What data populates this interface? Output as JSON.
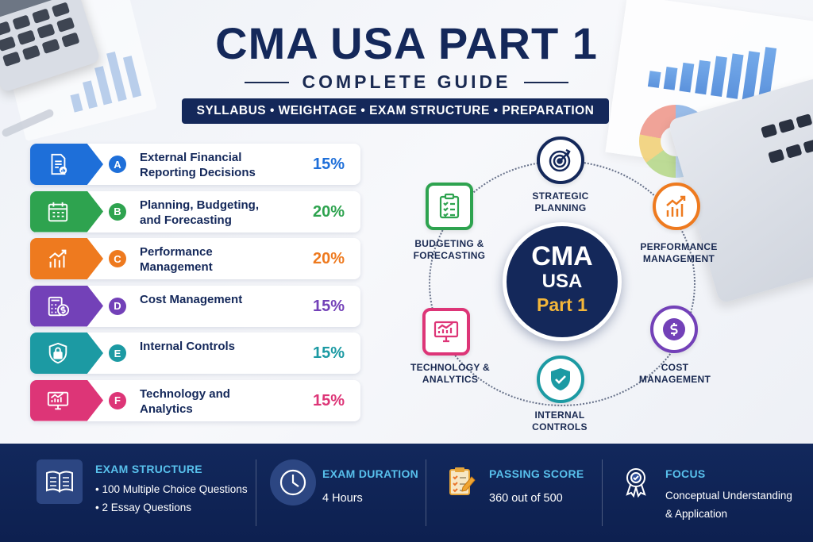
{
  "header": {
    "title": "CMA USA PART 1",
    "subtitle": "COMPLETE GUIDE",
    "topics": "SYLLABUS • WEIGHTAGE • EXAM STRUCTURE • PREPARATION"
  },
  "sections": [
    {
      "letter": "A",
      "name": "External Financial Reporting Decisions",
      "weight": "15%",
      "color": "#1e6fd9",
      "icon": "report-document-icon"
    },
    {
      "letter": "B",
      "name": "Planning, Budgeting, and Forecasting",
      "weight": "20%",
      "color": "#2ea34f",
      "icon": "calendar-icon"
    },
    {
      "letter": "C",
      "name": "Performance Management",
      "weight": "20%",
      "color": "#ee7a1f",
      "icon": "growth-chart-icon"
    },
    {
      "letter": "D",
      "name": "Cost Management",
      "weight": "15%",
      "color": "#7341b8",
      "icon": "calculator-dollar-icon"
    },
    {
      "letter": "E",
      "name": "Internal Controls",
      "weight": "15%",
      "color": "#1c9aa3",
      "icon": "shield-lock-icon"
    },
    {
      "letter": "F",
      "name": "Technology and Analytics",
      "weight": "15%",
      "color": "#dd3577",
      "icon": "monitor-chart-icon"
    }
  ],
  "diagram": {
    "center": {
      "line1": "CMA",
      "line2": "USA",
      "line3": "Part 1"
    },
    "nodes": [
      {
        "label_1": "STRATEGIC",
        "label_2": "PLANNING",
        "color": "#14285a",
        "icon": "target-icon"
      },
      {
        "label_1": "PERFORMANCE",
        "label_2": "MANAGEMENT",
        "color": "#ee7a1f",
        "icon": "growth-chart-icon"
      },
      {
        "label_1": "COST",
        "label_2": "MANAGEMENT",
        "color": "#7341b8",
        "icon": "dollar-coin-icon"
      },
      {
        "label_1": "INTERNAL",
        "label_2": "CONTROLS",
        "color": "#1c9aa3",
        "icon": "shield-check-icon"
      },
      {
        "label_1": "TECHNOLOGY &",
        "label_2": "ANALYTICS",
        "color": "#dd3577",
        "icon": "monitor-chart-icon"
      },
      {
        "label_1": "BUDGETING &",
        "label_2": "FORECASTING",
        "color": "#2ea34f",
        "icon": "checklist-clipboard-icon"
      }
    ]
  },
  "footer": {
    "structure": {
      "heading": "EXAM STRUCTURE",
      "line1": "• 100 Multiple Choice Questions",
      "line2": "• 2 Essay Questions",
      "icon": "open-book-icon"
    },
    "duration": {
      "heading": "EXAM DURATION",
      "value": "4 Hours",
      "icon": "clock-icon"
    },
    "passing": {
      "heading": "PASSING SCORE",
      "value": "360 out of 500",
      "icon": "clipboard-pencil-icon"
    },
    "focus": {
      "heading": "FOCUS",
      "line1": "Conceptual Understanding",
      "line2": "& Application",
      "icon": "award-ribbon-icon"
    }
  }
}
